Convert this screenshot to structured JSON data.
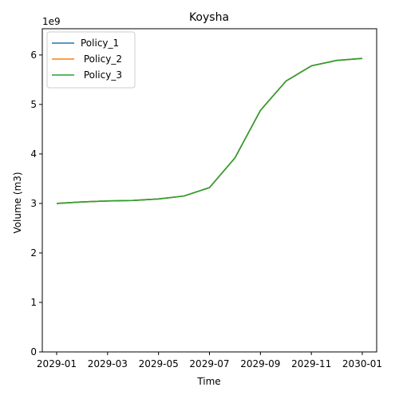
{
  "chart_data": {
    "type": "line",
    "title": "Koysha",
    "xlabel": "Time",
    "ylabel": "Volume (m3)",
    "y_offset_label": "1e9",
    "y_scale": 1000000000,
    "ylim": [
      0,
      6.53
    ],
    "x_tick_labels": [
      "2029-01",
      "2029-03",
      "2029-05",
      "2029-07",
      "2029-09",
      "2029-11",
      "2030-01"
    ],
    "y_tick_labels": [
      "0",
      "1",
      "2",
      "3",
      "4",
      "5",
      "6"
    ],
    "x": [
      "2029-01",
      "2029-02",
      "2029-03",
      "2029-04",
      "2029-05",
      "2029-06",
      "2029-07",
      "2029-08",
      "2029-09",
      "2029-10",
      "2029-11",
      "2029-12",
      "2030-01"
    ],
    "legend_position": "top-left",
    "grid": false,
    "series": [
      {
        "name": "Policy_1",
        "color": "#1f77b4",
        "values": [
          3.0,
          3.03,
          3.05,
          3.06,
          3.09,
          3.15,
          3.32,
          3.92,
          4.88,
          5.47,
          5.78,
          5.89,
          5.93
        ]
      },
      {
        "name": " Policy_2",
        "color": "#ff7f0e",
        "values": [
          3.0,
          3.03,
          3.05,
          3.06,
          3.09,
          3.15,
          3.32,
          3.92,
          4.88,
          5.47,
          5.78,
          5.89,
          5.93
        ]
      },
      {
        "name": " Policy_3",
        "color": "#2ca02c",
        "values": [
          3.0,
          3.03,
          3.05,
          3.06,
          3.09,
          3.15,
          3.32,
          3.92,
          4.88,
          5.47,
          5.78,
          5.89,
          5.93
        ]
      }
    ]
  }
}
